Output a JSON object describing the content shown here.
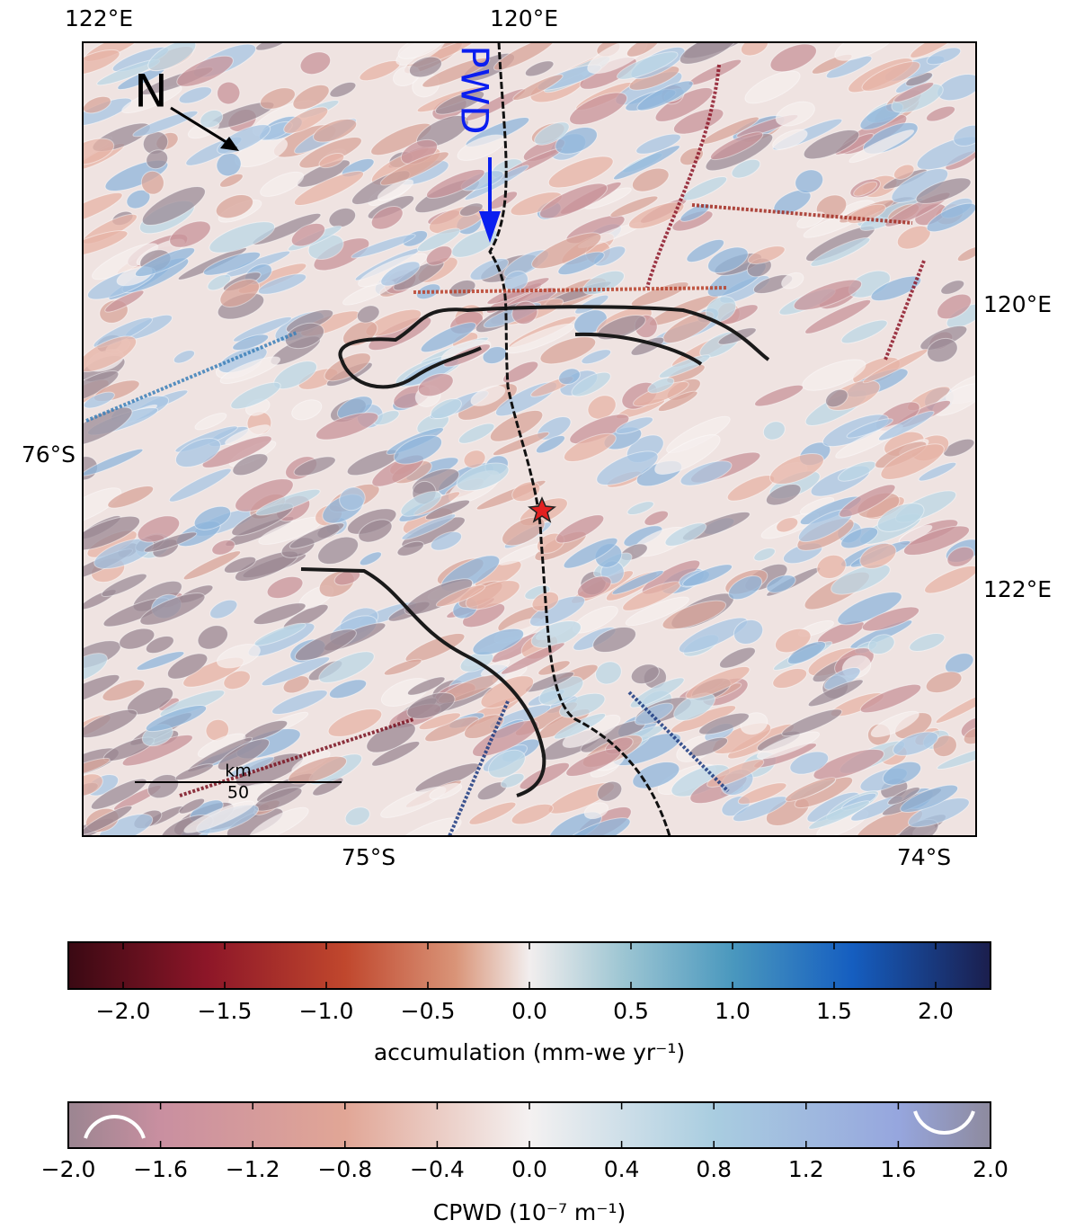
{
  "map": {
    "lon_labels": [
      "122°E",
      "120°E",
      "120°E",
      "122°E"
    ],
    "lat_labels": [
      "76°S",
      "75°S",
      "74°S"
    ],
    "north_label": "N",
    "pwd_label": "PWD",
    "scale_unit": "km",
    "scale_value": "50"
  },
  "colorbars": [
    {
      "label": "accumulation (mm-we yr⁻¹)",
      "lim": [
        -2.27,
        2.27
      ],
      "ticks": [
        {
          "value": -2.0,
          "label": "−2.0"
        },
        {
          "value": -1.5,
          "label": "−1.5"
        },
        {
          "value": -1.0,
          "label": "−1.0"
        },
        {
          "value": -0.5,
          "label": "−0.5"
        },
        {
          "value": 0.0,
          "label": "0.0"
        },
        {
          "value": 0.5,
          "label": "0.5"
        },
        {
          "value": 1.0,
          "label": "1.0"
        },
        {
          "value": 1.5,
          "label": "1.5"
        },
        {
          "value": 2.0,
          "label": "2.0"
        }
      ]
    },
    {
      "label": "CPWD (10⁻⁷ m⁻¹)",
      "lim": [
        -2.0,
        2.0
      ],
      "ticks": [
        {
          "value": -2.0,
          "label": "−2.0"
        },
        {
          "value": -1.6,
          "label": "−1.6"
        },
        {
          "value": -1.2,
          "label": "−1.2"
        },
        {
          "value": -0.8,
          "label": "−0.8"
        },
        {
          "value": -0.4,
          "label": "−0.4"
        },
        {
          "value": 0.0,
          "label": "0.0"
        },
        {
          "value": 0.4,
          "label": "0.4"
        },
        {
          "value": 0.8,
          "label": "0.8"
        },
        {
          "value": 1.2,
          "label": "1.2"
        },
        {
          "value": 1.6,
          "label": "1.6"
        },
        {
          "value": 2.0,
          "label": "2.0"
        }
      ]
    }
  ]
}
